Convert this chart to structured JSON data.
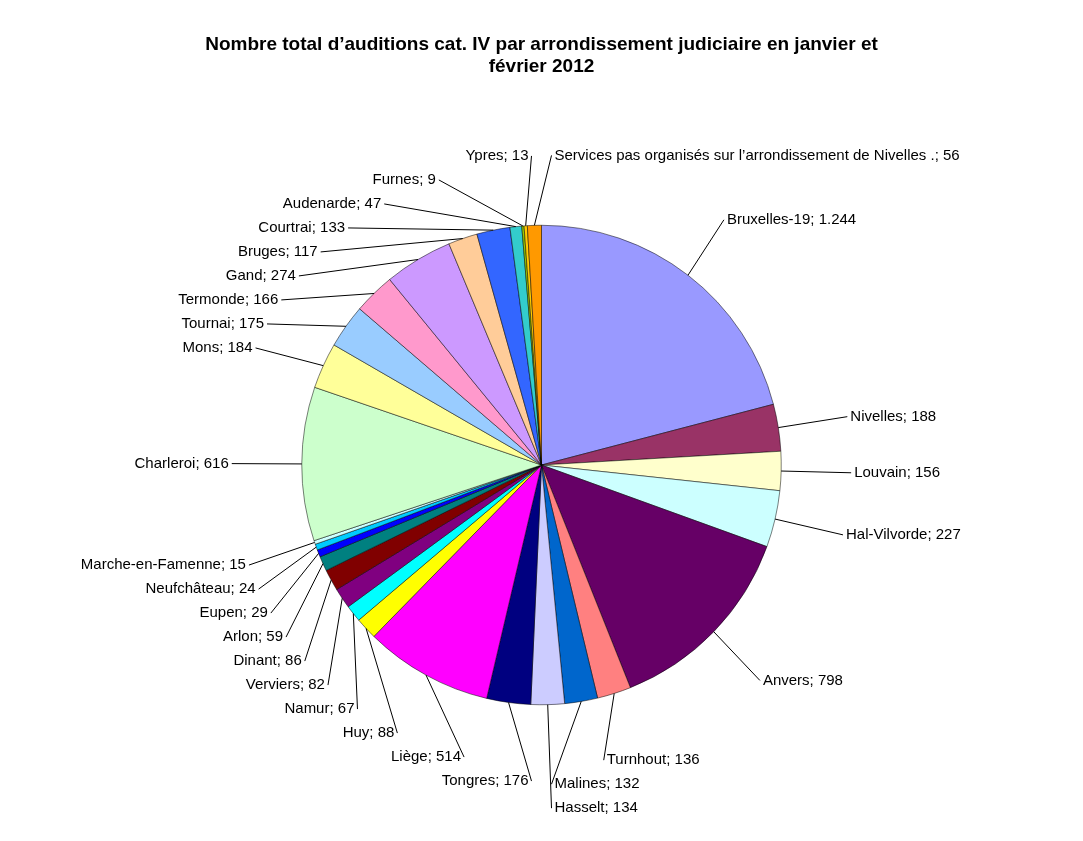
{
  "chart_data": {
    "type": "pie",
    "title": "Nombre total d’auditions cat. IV par arrondissement judiciaire en janvier et février 2012",
    "categories": [
      "Bruxelles-19",
      "Nivelles",
      "Louvain",
      "Hal-Vilvorde",
      "Anvers",
      "Turnhout",
      "Malines",
      "Hasselt",
      "Tongres",
      "Liège",
      "Huy",
      "Namur",
      "Verviers",
      "Dinant",
      "Arlon",
      "Eupen",
      "Neufchâteau",
      "Marche-en-Famenne",
      "Charleroi",
      "Mons",
      "Tournai",
      "Termonde",
      "Gand",
      "Bruges",
      "Courtrai",
      "Audenarde",
      "Furnes",
      "Ypres",
      "Services pas organisés sur l’arrondissement de Nivelles ."
    ],
    "values": [
      1244,
      188,
      156,
      227,
      798,
      136,
      132,
      134,
      176,
      514,
      88,
      67,
      82,
      86,
      59,
      29,
      24,
      15,
      616,
      184,
      175,
      166,
      274,
      117,
      133,
      47,
      9,
      13,
      56
    ],
    "value_labels": [
      "1.244",
      "188",
      "156",
      "227",
      "798",
      "136",
      "132",
      "134",
      "176",
      "514",
      "88",
      "67",
      "82",
      "86",
      "59",
      "29",
      "24",
      "15",
      "616",
      "184",
      "175",
      "166",
      "274",
      "117",
      "133",
      "47",
      "9",
      "13",
      "56"
    ],
    "colors": [
      "#9999ff",
      "#993366",
      "#ffffcc",
      "#ccffff",
      "#660066",
      "#ff8080",
      "#0066cc",
      "#ccccff",
      "#000080",
      "#ff00ff",
      "#ffff00",
      "#00ffff",
      "#800080",
      "#800000",
      "#008080",
      "#0000ff",
      "#00ccff",
      "#ccffff",
      "#ccffcc",
      "#ffff99",
      "#99ccff",
      "#ff99cc",
      "#cc99ff",
      "#ffcc99",
      "#3366ff",
      "#33cccc",
      "#99cc00",
      "#ffcc00",
      "#ff9900"
    ],
    "legend": false
  }
}
